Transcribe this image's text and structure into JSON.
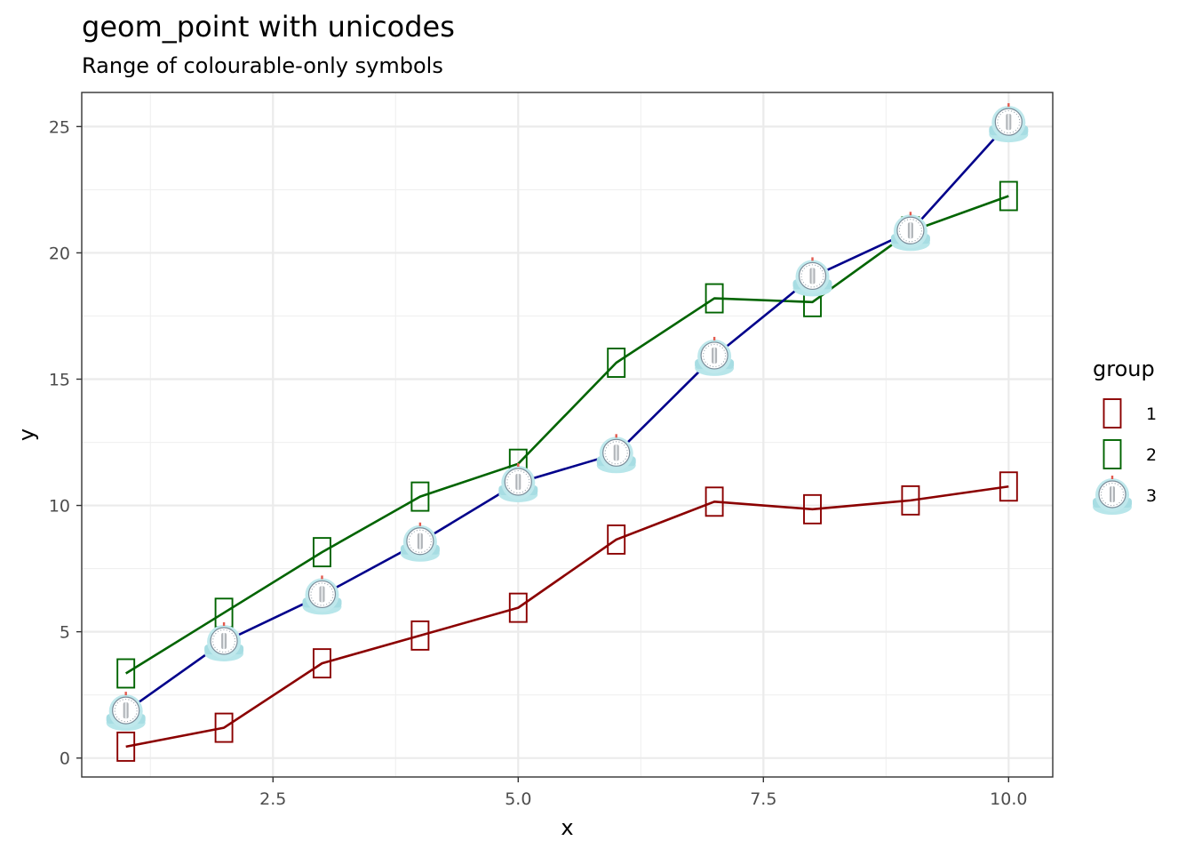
{
  "chart_data": {
    "type": "line",
    "title": "geom_point with unicodes",
    "subtitle": "Range of colourable-only symbols",
    "xlabel": "x",
    "ylabel": "y",
    "xlim": [
      0.55,
      10.45
    ],
    "ylim": [
      -0.75,
      26.35
    ],
    "x_ticks": [
      2.5,
      5.0,
      7.5,
      10.0
    ],
    "x_tick_labels": [
      "2.5",
      "5.0",
      "7.5",
      "10.0"
    ],
    "y_ticks": [
      0,
      5,
      10,
      15,
      20,
      25
    ],
    "y_tick_labels": [
      "0",
      "5",
      "10",
      "15",
      "20",
      "25"
    ],
    "grid": true,
    "legend": {
      "title": "group",
      "position": "right"
    },
    "x": [
      1,
      2,
      3,
      4,
      5,
      6,
      7,
      8,
      9,
      10
    ],
    "series": [
      {
        "name": "1",
        "color": "#8B0000",
        "marker": "box-glyph",
        "values": [
          0.45,
          1.2,
          3.75,
          4.85,
          5.95,
          8.65,
          10.15,
          9.85,
          10.2,
          10.75
        ]
      },
      {
        "name": "2",
        "color": "#006400",
        "marker": "box-glyph",
        "values": [
          3.35,
          5.75,
          8.15,
          10.35,
          11.65,
          15.65,
          18.2,
          18.05,
          20.85,
          22.25
        ]
      },
      {
        "name": "3",
        "color": "#00008B",
        "marker": "timer-clock-emoji",
        "values": [
          1.85,
          4.6,
          6.45,
          8.55,
          10.9,
          12.05,
          15.9,
          19.05,
          20.85,
          25.15
        ]
      }
    ]
  }
}
